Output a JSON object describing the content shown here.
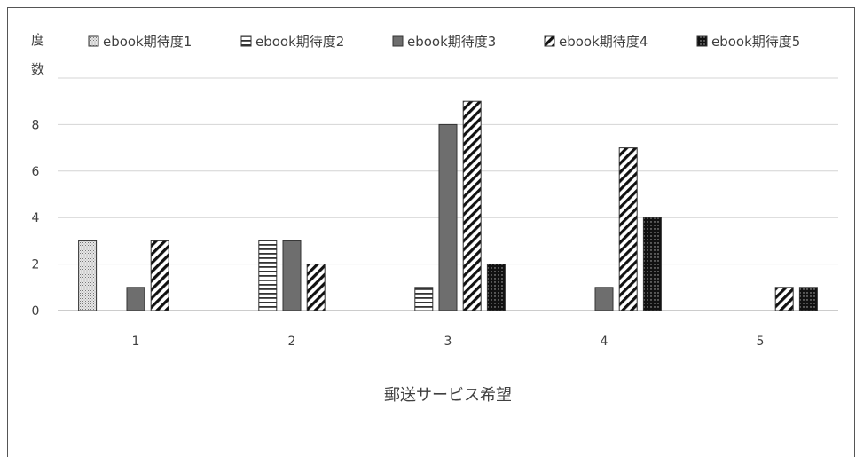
{
  "chart_data": {
    "type": "bar",
    "title": "",
    "xlabel": "郵送サービス希望",
    "ylabel": "度数",
    "categories": [
      "1",
      "2",
      "3",
      "4",
      "5"
    ],
    "ylim": [
      0,
      10
    ],
    "yticks": [
      "0",
      "2",
      "4",
      "6",
      "8"
    ],
    "grid": true,
    "legend_position": "top",
    "series": [
      {
        "name": "ebook期待度1",
        "values": [
          3,
          0,
          0,
          0,
          0
        ],
        "pattern": "dots",
        "color": "#555555"
      },
      {
        "name": "ebook期待度2",
        "values": [
          0,
          3,
          1,
          0,
          0
        ],
        "pattern": "horizontal-lines",
        "color": "#333333"
      },
      {
        "name": "ebook期待度3",
        "values": [
          1,
          3,
          8,
          1,
          0
        ],
        "pattern": "solid",
        "color": "#6e6e6e"
      },
      {
        "name": "ebook期待度4",
        "values": [
          3,
          2,
          9,
          7,
          1
        ],
        "pattern": "diagonal-lines",
        "color": "#111111"
      },
      {
        "name": "ebook期待度5",
        "values": [
          0,
          0,
          2,
          4,
          1
        ],
        "pattern": "dark-dots",
        "color": "#111111"
      }
    ]
  }
}
